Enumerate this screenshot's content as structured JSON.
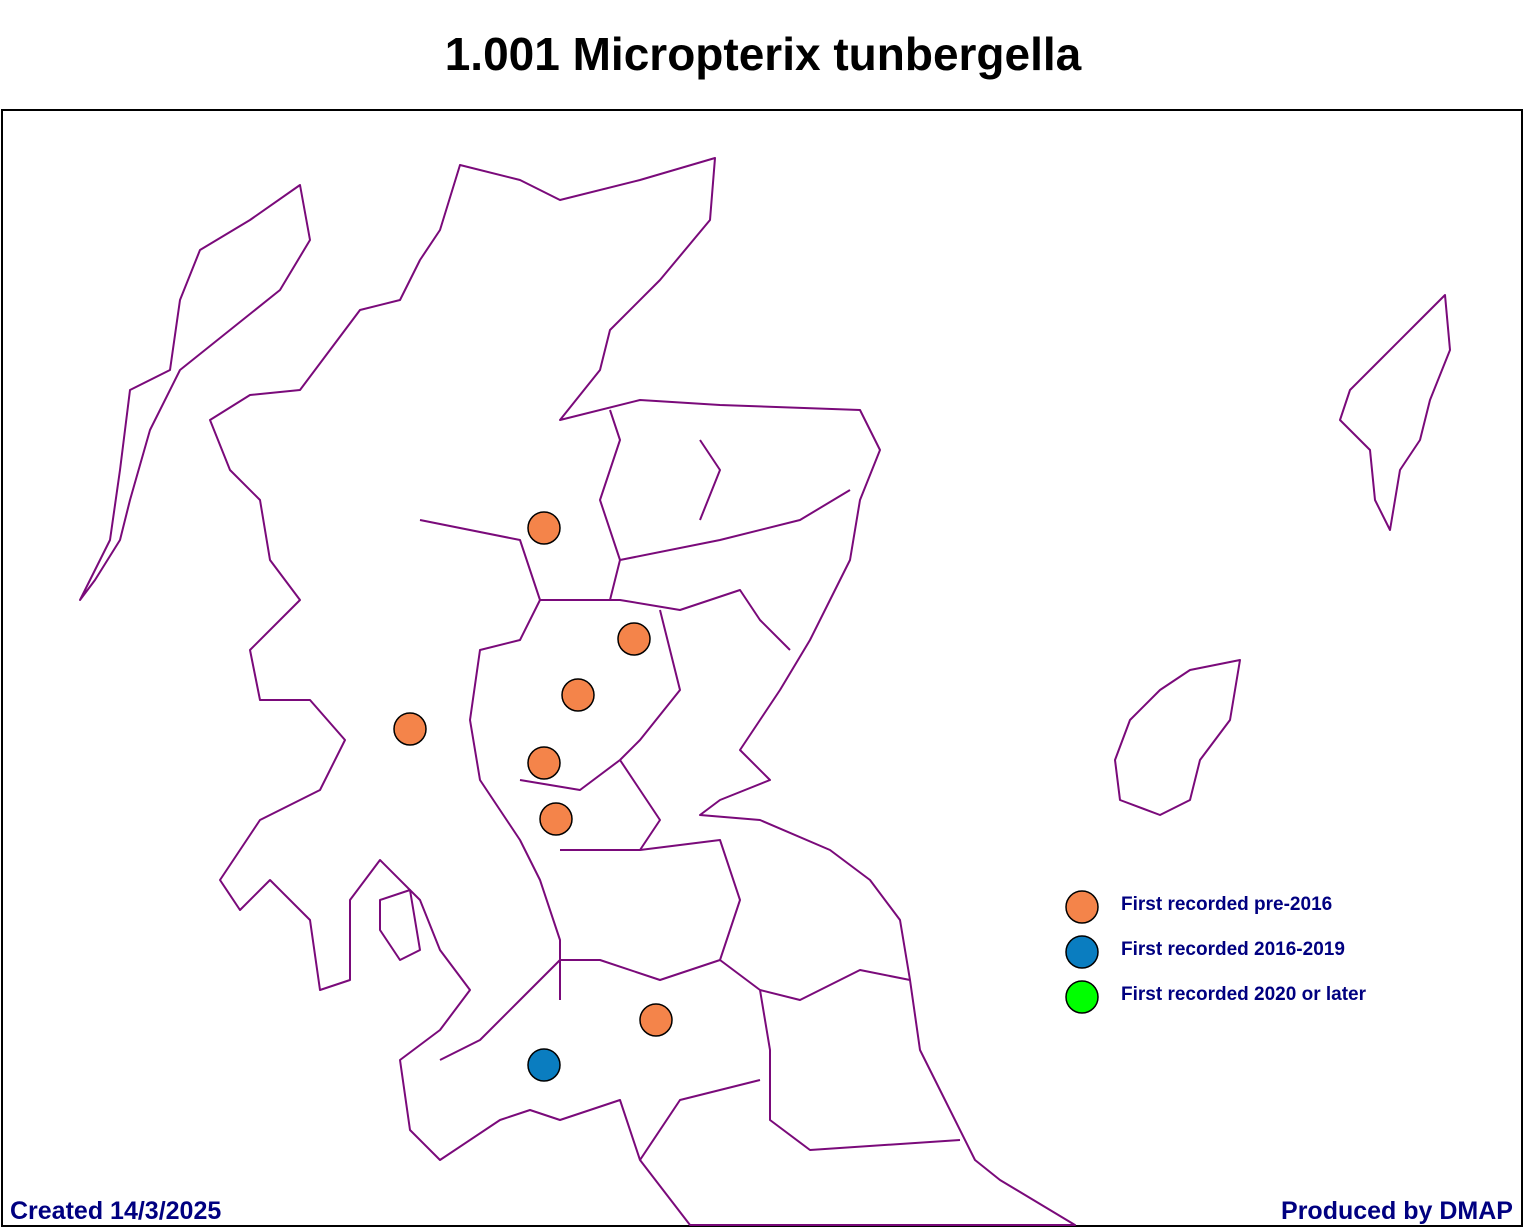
{
  "title": "1.001 Micropterix tunbergella",
  "legend": [
    {
      "name": "First recorded pre-2016",
      "color": "#f4844a"
    },
    {
      "name": "First recorded 2016-2019",
      "color": "#0a7dc0"
    },
    {
      "name": "First recorded 2020 or later",
      "color": "#00ff00"
    }
  ],
  "map_color": "#7a0a7a",
  "footer": {
    "created": "Created 14/3/2025",
    "produced": "Produced by DMAP"
  }
}
